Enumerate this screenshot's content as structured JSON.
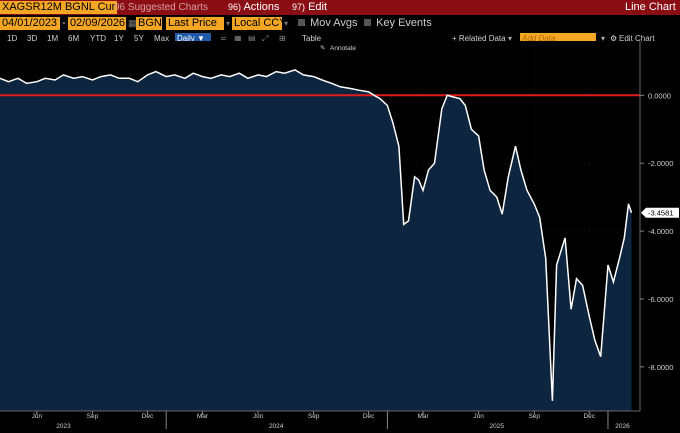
{
  "toolbar": {
    "ticker": "XAGSR12M BGNL Cur",
    "suggested": "Suggested Charts",
    "suggested_num": "96",
    "actions_num": "96)",
    "actions": "Actions",
    "edit_num": "97)",
    "edit": "Edit",
    "chart_type": "Line Chart"
  },
  "controls": {
    "start_date": "04/01/2023",
    "end_date": "02/09/2026",
    "source": "BGNL",
    "field": "Last Price",
    "currency": "Local CCY",
    "mov_avgs": "Mov Avgs",
    "key_events": "Key Events"
  },
  "ranges": {
    "items": [
      "1D",
      "3D",
      "1M",
      "6M",
      "YTD",
      "1Y",
      "5Y",
      "Max"
    ],
    "frequency": "Daily ▼",
    "table": "Table",
    "related": "+ Related Data",
    "add_data_placeholder": "Add Data",
    "edit_chart": "Edit Chart",
    "annotate": "Annotate"
  },
  "colors": {
    "toolbar_bg": "#8b0d14",
    "accent_orange": "#f5a623",
    "series_line": "#ffffff",
    "area_fill": "#0e2540",
    "zero_line": "#e01c1c",
    "selected_tab": "#1e5aa8"
  },
  "chart_data": {
    "type": "area",
    "title": "",
    "xlabel": "",
    "ylabel": "",
    "ylim": [
      -9.3,
      1.6
    ],
    "y_ticks": [
      0,
      -2,
      -4,
      -6,
      -8
    ],
    "y_tick_labels": [
      "0.0000",
      "-2.0000",
      "-4.0000",
      "-6.0000",
      "-8.0000"
    ],
    "x_tick_labels": [
      "Jun",
      "Sep",
      "Dec",
      "Mar",
      "Jun",
      "Sep",
      "Dec",
      "Mar",
      "Jun",
      "Sep",
      "Dec"
    ],
    "x_tick_dates": [
      "2023-06-01",
      "2023-09-01",
      "2023-12-01",
      "2024-03-01",
      "2024-06-01",
      "2024-09-01",
      "2024-12-01",
      "2025-03-01",
      "2025-06-01",
      "2025-09-01",
      "2025-12-01"
    ],
    "year_labels": [
      "2023",
      "2024",
      "2025",
      "2026"
    ],
    "year_label_dates": [
      "2023-07-15",
      "2024-07-01",
      "2025-07-01",
      "2026-01-25"
    ],
    "reference_line": 0,
    "last_value_label": "-3.4581",
    "last_value": -3.4581,
    "series": [
      {
        "x": [
          "2023-04-01",
          "2023-04-15",
          "2023-05-01",
          "2023-05-15",
          "2023-06-01",
          "2023-06-15",
          "2023-07-01",
          "2023-07-15",
          "2023-08-01",
          "2023-08-15",
          "2023-09-01",
          "2023-09-15",
          "2023-10-01",
          "2023-10-15",
          "2023-11-01",
          "2023-11-15",
          "2023-12-01",
          "2023-12-15",
          "2024-01-01",
          "2024-01-15",
          "2024-02-01",
          "2024-02-15",
          "2024-03-01",
          "2024-03-15",
          "2024-04-01",
          "2024-04-15",
          "2024-05-01",
          "2024-05-15",
          "2024-06-01",
          "2024-06-15",
          "2024-07-01",
          "2024-07-15",
          "2024-08-01",
          "2024-08-15",
          "2024-09-01",
          "2024-09-15",
          "2024-10-01",
          "2024-10-15",
          "2024-11-01",
          "2024-11-15",
          "2024-12-01",
          "2024-12-10",
          "2024-12-20",
          "2025-01-01",
          "2025-01-10",
          "2025-01-20",
          "2025-01-28",
          "2025-02-05",
          "2025-02-15",
          "2025-02-22",
          "2025-03-01",
          "2025-03-10",
          "2025-03-20",
          "2025-04-01",
          "2025-04-10",
          "2025-04-20",
          "2025-05-01",
          "2025-05-10",
          "2025-05-20",
          "2025-06-01",
          "2025-06-10",
          "2025-06-20",
          "2025-07-01",
          "2025-07-10",
          "2025-07-20",
          "2025-08-01",
          "2025-08-10",
          "2025-08-20",
          "2025-09-01",
          "2025-09-10",
          "2025-09-20",
          "2025-10-01",
          "2025-10-08",
          "2025-10-15",
          "2025-10-22",
          "2025-11-01",
          "2025-11-10",
          "2025-11-20",
          "2025-12-01",
          "2025-12-10",
          "2025-12-20",
          "2026-01-01",
          "2026-01-10",
          "2026-01-20",
          "2026-01-28",
          "2026-02-04",
          "2026-02-09"
        ],
        "values": [
          0.5,
          0.4,
          0.5,
          0.35,
          0.4,
          0.5,
          0.45,
          0.6,
          0.5,
          0.55,
          0.45,
          0.55,
          0.6,
          0.5,
          0.5,
          0.4,
          0.6,
          0.7,
          0.55,
          0.6,
          0.5,
          0.65,
          0.55,
          0.5,
          0.6,
          0.55,
          0.65,
          0.5,
          0.6,
          0.55,
          0.7,
          0.65,
          0.75,
          0.6,
          0.55,
          0.45,
          0.35,
          0.25,
          0.2,
          0.15,
          0.1,
          0.0,
          -0.1,
          -0.3,
          -0.8,
          -1.5,
          -3.8,
          -3.7,
          -2.4,
          -2.5,
          -2.8,
          -2.2,
          -2.0,
          -0.4,
          0.0,
          -0.05,
          -0.1,
          -0.3,
          -1.0,
          -1.2,
          -2.2,
          -2.8,
          -3.0,
          -3.5,
          -2.4,
          -1.5,
          -2.2,
          -2.8,
          -3.2,
          -3.6,
          -4.8,
          -9.0,
          -5.0,
          -4.6,
          -4.2,
          -6.3,
          -5.4,
          -5.6,
          -6.5,
          -7.2,
          -7.7,
          -5.0,
          -5.5,
          -4.8,
          -4.2,
          -3.2,
          -3.4581
        ]
      }
    ]
  }
}
